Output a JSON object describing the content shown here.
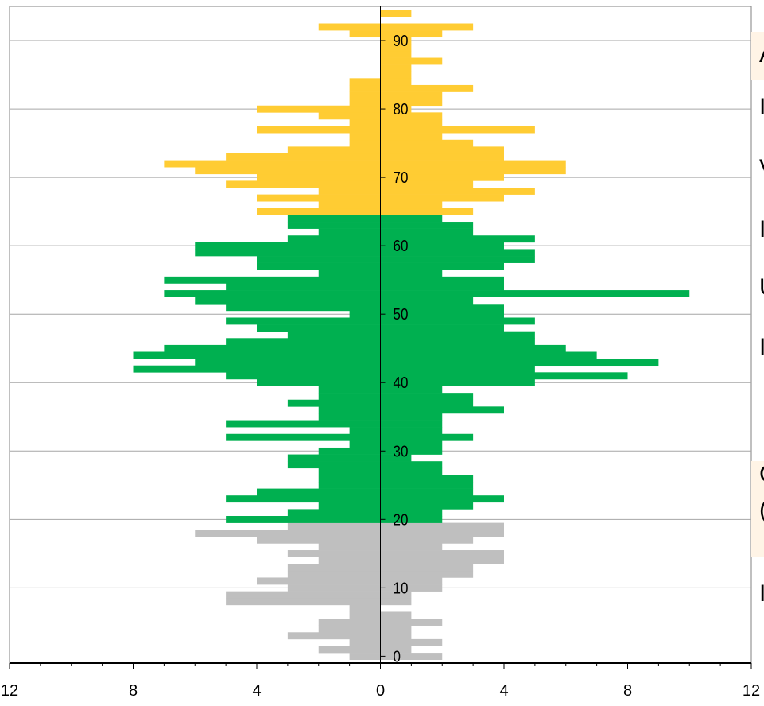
{
  "chart_data": {
    "type": "bar",
    "orientation": "horizontal-pyramid",
    "title": "",
    "xlabel": "",
    "ylabel": "",
    "xlim": [
      -12,
      12
    ],
    "ylim": [
      -1,
      95
    ],
    "x_ticks": [
      -12,
      -8,
      -4,
      0,
      4,
      8,
      12
    ],
    "x_tick_labels": [
      "12",
      "8",
      "4",
      "0",
      "4",
      "8",
      "12"
    ],
    "y_ticks": [
      0,
      10,
      20,
      30,
      40,
      50,
      60,
      70,
      80,
      90
    ],
    "y_tick_labels": [
      "0",
      "10",
      "20",
      "30",
      "40",
      "50",
      "60",
      "70",
      "80",
      "90"
    ],
    "grid": "horizontal",
    "colors": {
      "group_low": "#bfbfbf",
      "group_mid": "#00b050",
      "group_high": "#ffcc33",
      "grid": "#a6a6a6",
      "axis": "#000000",
      "frame": "#808080"
    },
    "group_ranges": [
      {
        "color": "group_low",
        "from": 0,
        "to": 19
      },
      {
        "color": "group_mid",
        "from": 20,
        "to": 64
      },
      {
        "color": "group_high",
        "from": 65,
        "to": 94
      }
    ],
    "ages": [
      0,
      1,
      2,
      3,
      4,
      5,
      6,
      7,
      8,
      9,
      10,
      11,
      12,
      13,
      14,
      15,
      16,
      17,
      18,
      19,
      20,
      21,
      22,
      23,
      24,
      25,
      26,
      27,
      28,
      29,
      30,
      31,
      32,
      33,
      34,
      35,
      36,
      37,
      38,
      39,
      40,
      41,
      42,
      43,
      44,
      45,
      46,
      47,
      48,
      49,
      50,
      51,
      52,
      53,
      54,
      55,
      56,
      57,
      58,
      59,
      60,
      61,
      62,
      63,
      64,
      65,
      66,
      67,
      68,
      69,
      70,
      71,
      72,
      73,
      74,
      75,
      76,
      77,
      78,
      79,
      80,
      81,
      82,
      83,
      84,
      85,
      86,
      87,
      88,
      89,
      90,
      91,
      92,
      93,
      94
    ],
    "series": [
      {
        "side": "left",
        "values": [
          1,
          2,
          1,
          3,
          2,
          2,
          1,
          1,
          5,
          5,
          3,
          4,
          3,
          3,
          2,
          3,
          2,
          4,
          6,
          3,
          5,
          3,
          2,
          5,
          4,
          2,
          2,
          2,
          3,
          3,
          2,
          1,
          5,
          1,
          5,
          2,
          2,
          3,
          2,
          2,
          4,
          5,
          8,
          6,
          8,
          7,
          5,
          3,
          4,
          5,
          1,
          5,
          6,
          7,
          5,
          7,
          2,
          4,
          4,
          6,
          6,
          3,
          2,
          3,
          3,
          4,
          2,
          4,
          2,
          5,
          4,
          6,
          7,
          5,
          3,
          1,
          1,
          4,
          1,
          2,
          4,
          1,
          1,
          1,
          1,
          0,
          0,
          0,
          0,
          0,
          0,
          1,
          2,
          0,
          0
        ]
      },
      {
        "side": "right",
        "values": [
          2,
          1,
          2,
          1,
          1,
          2,
          1,
          0,
          1,
          1,
          2,
          2,
          3,
          3,
          4,
          4,
          2,
          3,
          4,
          4,
          2,
          2,
          3,
          4,
          3,
          3,
          3,
          2,
          2,
          1,
          2,
          2,
          3,
          2,
          2,
          2,
          4,
          3,
          3,
          2,
          5,
          8,
          5,
          9,
          7,
          6,
          5,
          5,
          4,
          5,
          4,
          4,
          3,
          10,
          4,
          4,
          2,
          4,
          5,
          5,
          4,
          5,
          3,
          3,
          2,
          3,
          2,
          4,
          5,
          3,
          4,
          6,
          6,
          4,
          4,
          3,
          2,
          5,
          2,
          2,
          1,
          2,
          2,
          3,
          1,
          1,
          1,
          2,
          1,
          1,
          1,
          2,
          3,
          0,
          1
        ]
      }
    ]
  },
  "side_panel": {
    "label_1": "A",
    "label_2": "I",
    "label_3": "V",
    "label_4": "I",
    "label_5": "U",
    "label_6": "I",
    "label_7": "C",
    "label_8": "(",
    "label_9": "I"
  }
}
